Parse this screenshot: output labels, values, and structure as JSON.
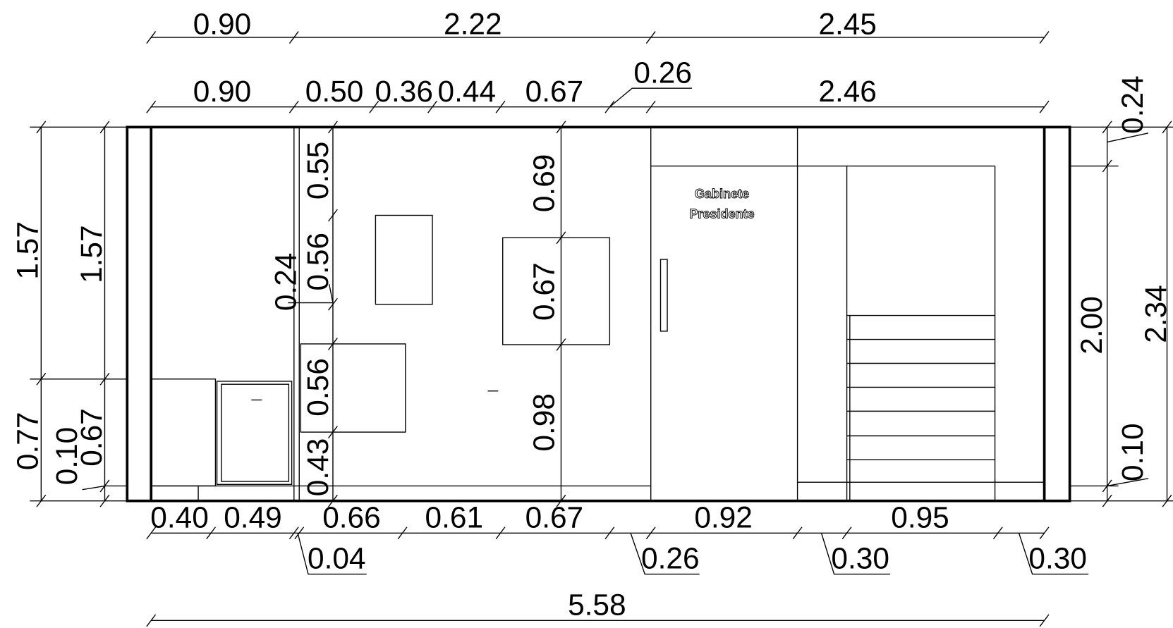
{
  "dimensions": {
    "top_overall": [
      "0.90",
      "2.22",
      "2.45"
    ],
    "top_detail": [
      "0.90",
      "0.50",
      "0.36",
      "0.44",
      "0.67",
      "0.26",
      "2.46"
    ],
    "bottom": [
      "0.40",
      "0.49",
      "0.66",
      "0.61",
      "0.67",
      "0.92",
      "0.95"
    ],
    "bottom_leaders": [
      "0.04",
      "0.26",
      "0.30",
      "0.30"
    ],
    "total": "5.58",
    "left": [
      "1.57",
      "1.57",
      "0.77",
      "0.67",
      "0.10"
    ],
    "interior_a": [
      "0.55",
      "0.56",
      "0.24",
      "0.56",
      "0.43"
    ],
    "interior_b": [
      "0.69",
      "0.67",
      "0.98"
    ],
    "right": [
      "0.24",
      "2.00",
      "2.34",
      "0.10"
    ]
  },
  "room_label": {
    "line1": "Gabinete",
    "line2": "Presidente"
  }
}
